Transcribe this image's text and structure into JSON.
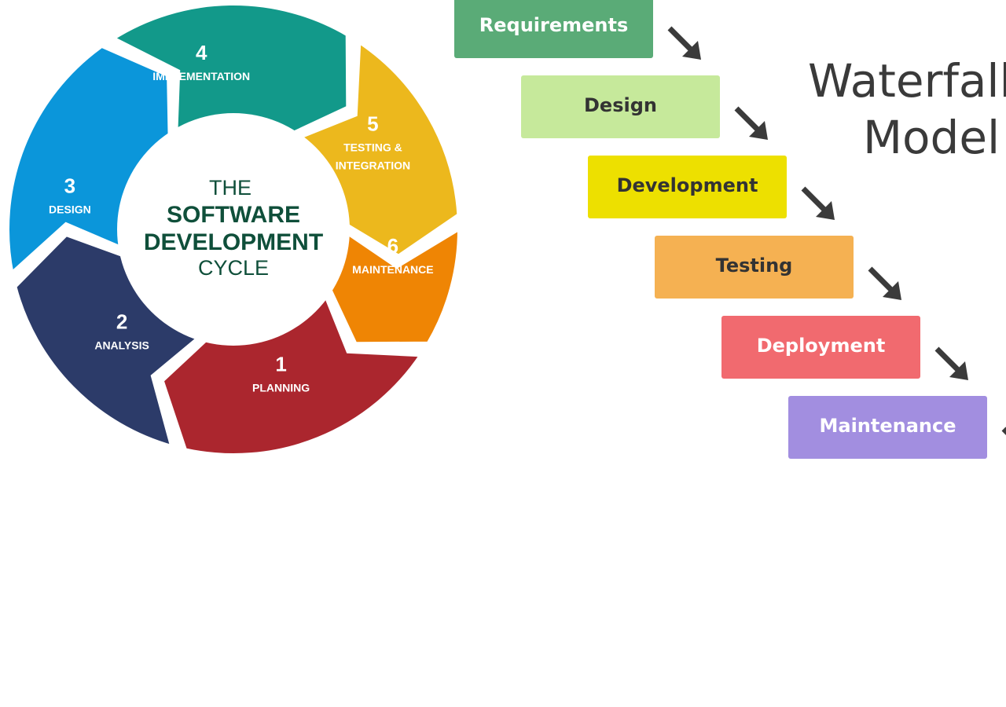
{
  "cycle": {
    "center": {
      "line1": "THE",
      "line2": "SOFTWARE",
      "line3": "DEVELOPMENT",
      "line4": "CYCLE",
      "color": "#0f4f3a"
    },
    "segments": [
      {
        "number": "1",
        "label_lines": [
          "PLANNING"
        ],
        "color": "#ab262e"
      },
      {
        "number": "2",
        "label_lines": [
          "ANALYSIS"
        ],
        "color": "#2c3b69"
      },
      {
        "number": "3",
        "label_lines": [
          "DESIGN"
        ],
        "color": "#0b96da"
      },
      {
        "number": "4",
        "label_lines": [
          "IMPLEMENTATION"
        ],
        "color": "#12998a"
      },
      {
        "number": "5",
        "label_lines": [
          "TESTING &",
          "INTEGRATION"
        ],
        "color": "#ecb81d"
      },
      {
        "number": "6",
        "label_lines": [
          "MAINTENANCE"
        ],
        "color": "#ef8504"
      }
    ]
  },
  "waterfall": {
    "title_line1": "Waterfall",
    "title_line2": "Model",
    "arrow_icon": "arrow-down-right-icon",
    "arrow_color": "#3b3b3b",
    "steps": [
      {
        "label": "Requirements",
        "color": "#5aab77",
        "text_color": "#ffffff"
      },
      {
        "label": "Design",
        "color": "#c6e99b",
        "text_color": "#333333"
      },
      {
        "label": "Development",
        "color": "#ede000",
        "text_color": "#333333"
      },
      {
        "label": "Testing",
        "color": "#f5b152",
        "text_color": "#333333"
      },
      {
        "label": "Deployment",
        "color": "#f16a6f",
        "text_color": "#ffffff"
      },
      {
        "label": "Maintenance",
        "color": "#a28ee0",
        "text_color": "#ffffff"
      }
    ]
  }
}
